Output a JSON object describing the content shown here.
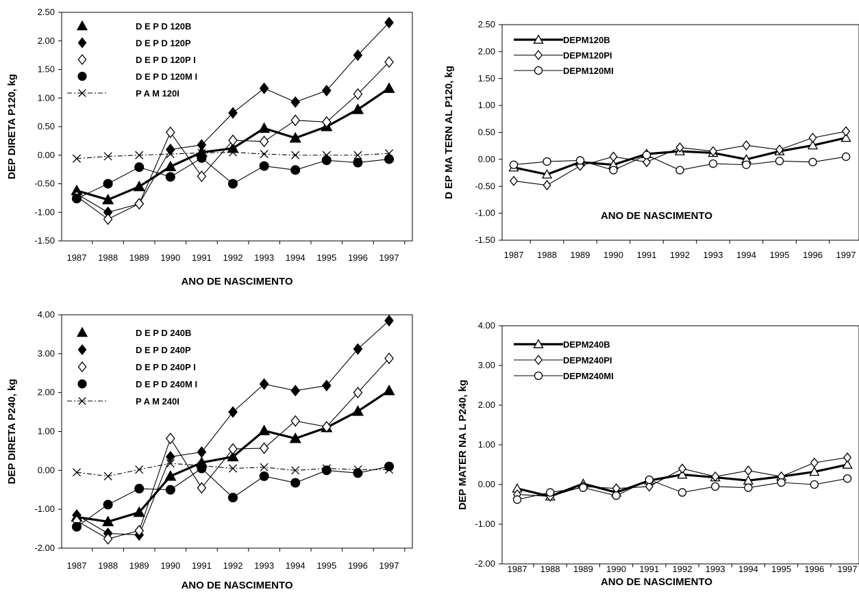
{
  "chart_data": [
    {
      "type": "line",
      "ylabel": "DEP DIRETA P120, kg",
      "xlabel": "ANO DE NASCIMENTO",
      "ylim": [
        -1.5,
        2.5
      ],
      "yticks": [
        "2.50",
        "2.00",
        "1.50",
        "1.00",
        "0.50",
        "0.00",
        "-0.50",
        "-1.00",
        "-1.50"
      ],
      "categories": [
        "1987",
        "1988",
        "1989",
        "1990",
        "1991",
        "1992",
        "1993",
        "1994",
        "1995",
        "1996",
        "1997"
      ],
      "legend_position": "top-left",
      "series": [
        {
          "name": "D E P D 120B",
          "marker": "triangle-filled",
          "line": "thick",
          "values": [
            -0.62,
            -0.78,
            -0.55,
            -0.2,
            0.05,
            0.12,
            0.47,
            0.3,
            0.5,
            0.8,
            1.17
          ]
        },
        {
          "name": "D E P D 120P",
          "marker": "diamond-filled",
          "line": "thin",
          "values": [
            -0.68,
            -1.0,
            -0.85,
            0.1,
            0.18,
            0.74,
            1.17,
            0.93,
            1.13,
            1.75,
            2.32
          ]
        },
        {
          "name": "D E P D 120P I",
          "marker": "diamond-open",
          "line": "thin",
          "values": [
            -0.72,
            -1.12,
            -0.85,
            0.4,
            -0.37,
            0.26,
            0.24,
            0.61,
            0.58,
            1.07,
            1.63
          ]
        },
        {
          "name": "D E P D 120M I",
          "marker": "circle-filled",
          "line": "thin",
          "values": [
            -0.76,
            -0.5,
            -0.21,
            -0.38,
            -0.05,
            -0.5,
            -0.19,
            -0.26,
            -0.09,
            -0.13,
            -0.07
          ]
        },
        {
          "name": "P A M 120I",
          "marker": "x",
          "line": "dashdot",
          "values": [
            -0.06,
            -0.02,
            0.0,
            0.02,
            0.04,
            0.05,
            0.02,
            0.0,
            0.0,
            0.0,
            0.03
          ]
        }
      ]
    },
    {
      "type": "line",
      "ylabel": "D EP MA TERN AL P120, kg",
      "xlabel": "ANO DE NASCIMENTO",
      "ylim": [
        -1.5,
        2.5
      ],
      "yticks": [
        "2.50",
        "2.00",
        "1.50",
        "1.00",
        "0.50",
        "0.00",
        "-0.50",
        "-1.00",
        "-1.50"
      ],
      "categories": [
        "1987",
        "1988",
        "1989",
        "1990",
        "1991",
        "1992",
        "1993",
        "1994",
        "1995",
        "1996",
        "1997"
      ],
      "legend_position": "top-left",
      "series": [
        {
          "name": "DEPM120B",
          "marker": "triangle-open",
          "line": "thick",
          "values": [
            -0.15,
            -0.28,
            -0.05,
            -0.1,
            0.1,
            0.15,
            0.12,
            0.0,
            0.15,
            0.26,
            0.4
          ]
        },
        {
          "name": "DEPM120PI",
          "marker": "diamond-open",
          "line": "thin",
          "values": [
            -0.4,
            -0.48,
            -0.12,
            0.05,
            -0.05,
            0.22,
            0.15,
            0.26,
            0.18,
            0.4,
            0.52
          ]
        },
        {
          "name": "DEPM120MI",
          "marker": "circle-open",
          "line": "thin",
          "values": [
            -0.1,
            -0.04,
            -0.02,
            -0.2,
            0.08,
            -0.2,
            -0.08,
            -0.1,
            -0.03,
            -0.05,
            0.05
          ]
        }
      ]
    },
    {
      "type": "line",
      "ylabel": "DEP DIRETA P240, kg",
      "xlabel": "ANO DE NASCIMENTO",
      "ylim": [
        -2,
        4
      ],
      "yticks": [
        "4.00",
        "3.00",
        "2.00",
        "1.00",
        "0.00",
        "-1.00",
        "-2.00"
      ],
      "categories": [
        "1987",
        "1988",
        "1989",
        "1990",
        "1991",
        "1992",
        "1993",
        "1994",
        "1995",
        "1996",
        "1997"
      ],
      "legend_position": "top-left",
      "series": [
        {
          "name": "D E P D 240B",
          "marker": "triangle-filled",
          "line": "thick",
          "values": [
            -1.2,
            -1.32,
            -1.08,
            -0.15,
            0.2,
            0.35,
            1.02,
            0.82,
            1.1,
            1.52,
            2.05
          ]
        },
        {
          "name": "D E P D 240P",
          "marker": "diamond-filled",
          "line": "thin",
          "values": [
            -1.15,
            -1.62,
            -1.66,
            0.35,
            0.47,
            1.5,
            2.22,
            2.05,
            2.18,
            3.12,
            3.85
          ]
        },
        {
          "name": "D E P D 240P I",
          "marker": "diamond-open",
          "line": "thin",
          "values": [
            -1.3,
            -1.76,
            -1.55,
            0.82,
            -0.45,
            0.55,
            0.57,
            1.27,
            1.12,
            2.0,
            2.88
          ]
        },
        {
          "name": "D E P D 240M I",
          "marker": "circle-filled",
          "line": "thin",
          "values": [
            -1.45,
            -0.88,
            -0.47,
            -0.5,
            0.05,
            -0.7,
            -0.15,
            -0.32,
            0.0,
            -0.07,
            0.1
          ]
        },
        {
          "name": "P A M 240I",
          "marker": "x",
          "line": "dashdot",
          "values": [
            -0.05,
            -0.15,
            0.02,
            0.18,
            0.12,
            0.05,
            0.08,
            0.0,
            0.05,
            0.02,
            0.02
          ]
        }
      ]
    },
    {
      "type": "line",
      "ylabel": "DEP MATER NA L P240, kg",
      "xlabel": "ANO DE NASCIMENTO",
      "ylim": [
        -2,
        4
      ],
      "yticks": [
        "4.00",
        "3.00",
        "2.00",
        "1.00",
        "0.00",
        "-1.00",
        "-2.00"
      ],
      "categories": [
        "1987",
        "1988",
        "1989",
        "1990",
        "1991",
        "1992",
        "1993",
        "1994",
        "1995",
        "1996",
        "1997"
      ],
      "legend_position": "top-left",
      "series": [
        {
          "name": "DEPM240B",
          "marker": "triangle-open",
          "line": "thick",
          "values": [
            -0.1,
            -0.3,
            0.02,
            -0.2,
            0.1,
            0.25,
            0.18,
            0.1,
            0.2,
            0.32,
            0.5
          ]
        },
        {
          "name": "DEPM240PI",
          "marker": "diamond-open",
          "line": "thin",
          "values": [
            -0.25,
            -0.3,
            -0.05,
            -0.1,
            -0.05,
            0.4,
            0.2,
            0.35,
            0.2,
            0.55,
            0.68
          ]
        },
        {
          "name": "DEPM240MI",
          "marker": "circle-open",
          "line": "thin",
          "values": [
            -0.38,
            -0.2,
            -0.08,
            -0.28,
            0.12,
            -0.2,
            -0.05,
            -0.08,
            0.05,
            0.0,
            0.15
          ]
        }
      ]
    }
  ]
}
